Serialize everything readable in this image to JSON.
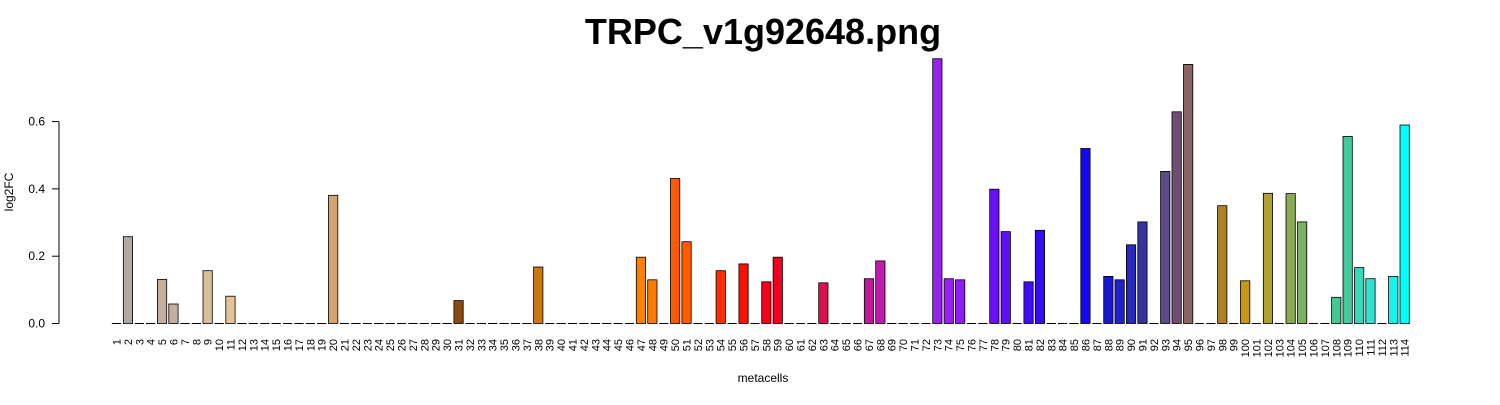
{
  "chart_data": {
    "type": "bar",
    "title": "TRPC_v1g92648.png",
    "xlabel": "metacells",
    "ylabel": "log2FC",
    "ylim": [
      0,
      0.8
    ],
    "yticks": [
      "0.0",
      "0.2",
      "0.4",
      "0.6"
    ],
    "grid": false,
    "categories": [
      "1",
      "2",
      "3",
      "4",
      "5",
      "6",
      "7",
      "8",
      "9",
      "10",
      "11",
      "12",
      "13",
      "14",
      "15",
      "16",
      "17",
      "18",
      "19",
      "20",
      "21",
      "22",
      "23",
      "24",
      "25",
      "26",
      "27",
      "28",
      "29",
      "30",
      "31",
      "32",
      "33",
      "34",
      "35",
      "36",
      "37",
      "38",
      "39",
      "40",
      "41",
      "42",
      "43",
      "44",
      "45",
      "46",
      "47",
      "48",
      "49",
      "50",
      "51",
      "52",
      "53",
      "54",
      "55",
      "56",
      "57",
      "58",
      "59",
      "60",
      "61",
      "62",
      "63",
      "64",
      "65",
      "66",
      "67",
      "68",
      "69",
      "70",
      "71",
      "72",
      "73",
      "74",
      "75",
      "76",
      "77",
      "78",
      "79",
      "80",
      "81",
      "82",
      "83",
      "84",
      "85",
      "86",
      "87",
      "88",
      "89",
      "90",
      "91",
      "92",
      "93",
      "94",
      "95",
      "96",
      "97",
      "98",
      "99",
      "100",
      "101",
      "102",
      "103",
      "104",
      "105",
      "106",
      "107",
      "108",
      "109",
      "110",
      "111",
      "112",
      "113",
      "114"
    ],
    "values": [
      0,
      0.258,
      0,
      0,
      0.131,
      0.058,
      0,
      0,
      0.157,
      0,
      0.081,
      0,
      0,
      0,
      0,
      0,
      0,
      0,
      0,
      0.381,
      0,
      0,
      0,
      0,
      0,
      0,
      0,
      0,
      0,
      0,
      0.068,
      0,
      0,
      0,
      0,
      0,
      0,
      0.168,
      0,
      0,
      0,
      0,
      0,
      0,
      0,
      0,
      0.197,
      0.13,
      0,
      0.431,
      0.243,
      0,
      0,
      0.157,
      0,
      0.177,
      0,
      0.124,
      0.197,
      0,
      0,
      0,
      0.121,
      0,
      0,
      0,
      0.133,
      0.186,
      0,
      0,
      0,
      0,
      0.787,
      0.133,
      0.13,
      0,
      0,
      0.399,
      0.273,
      0,
      0.124,
      0.277,
      0,
      0,
      0,
      0.52,
      0,
      0.14,
      0.13,
      0.234,
      0.302,
      0,
      0.452,
      0.629,
      0.77,
      0,
      0,
      0.35,
      0,
      0.127,
      0,
      0.387,
      0,
      0.386,
      0.302,
      0,
      0,
      0.078,
      0.556,
      0.166,
      0.133,
      0,
      0.14,
      0.59
    ],
    "colors": [
      "#b2a99e",
      "#b2a99e",
      "#b2a99e",
      "#b2a99e",
      "#c4ae9c",
      "#c4ae9c",
      "#d8be9a",
      "#d8be9a",
      "#d8be9a",
      "#e4c29a",
      "#e4c29a",
      "#d6a173",
      "#d6a173",
      "#d6a173",
      "#d6a173",
      "#d6a173",
      "#d6a173",
      "#d6a173",
      "#d6a173",
      "#d6a173",
      "#c38f5c",
      "#b57b42",
      "#a8692d",
      "#9b5a1d",
      "#915219",
      "#8b4a12",
      "#8b4a12",
      "#8b4a12",
      "#8b4a12",
      "#8b4a12",
      "#8b4a12",
      "#a65e0f",
      "#b46811",
      "#bf7012",
      "#c47413",
      "#c87613",
      "#c97713",
      "#c97713",
      "#d07c10",
      "#d8800c",
      "#e0830a",
      "#e88608",
      "#ef8706",
      "#f58805",
      "#fb8404",
      "#ff8000",
      "#ff8000",
      "#ff7800",
      "#ff6a00",
      "#ff5a00",
      "#ff5a00",
      "#ff4a00",
      "#ff3400",
      "#ff2c00",
      "#ff2c00",
      "#ff1000",
      "#ff1000",
      "#f5001c",
      "#f5001c",
      "#ee0630",
      "#e6093e",
      "#df0d4a",
      "#dc0f50",
      "#dc0f50",
      "#d01570",
      "#c81888",
      "#c41a98",
      "#c01ab0",
      "#b81ac8",
      "#ad1ad8",
      "#a41ae4",
      "#9c1af0",
      "#9820f0",
      "#9820f0",
      "#8f1cf4",
      "#8517f5",
      "#7a12f5",
      "#6b10f5",
      "#6010f5",
      "#4f0ef5",
      "#400ef5",
      "#330ef5",
      "#2b0ef5",
      "#200cf5",
      "#180af5",
      "#1208f5",
      "#1010e0",
      "#1818d0",
      "#2020cc",
      "#2828bc",
      "#34349a",
      "#3c327e",
      "#5c4a8a",
      "#6e4f72",
      "#8a6464",
      "#8f6a40",
      "#a2762a",
      "#b08026",
      "#c08a1c",
      "#c99618",
      "#c8a01e",
      "#b0a030",
      "#9ca640",
      "#88aa54",
      "#7ab060",
      "#68b870",
      "#58c080",
      "#48c890",
      "#40cc9a",
      "#3ad8ba",
      "#30e2cc",
      "#22ecde",
      "#14f4ee",
      "#00ffff"
    ]
  }
}
